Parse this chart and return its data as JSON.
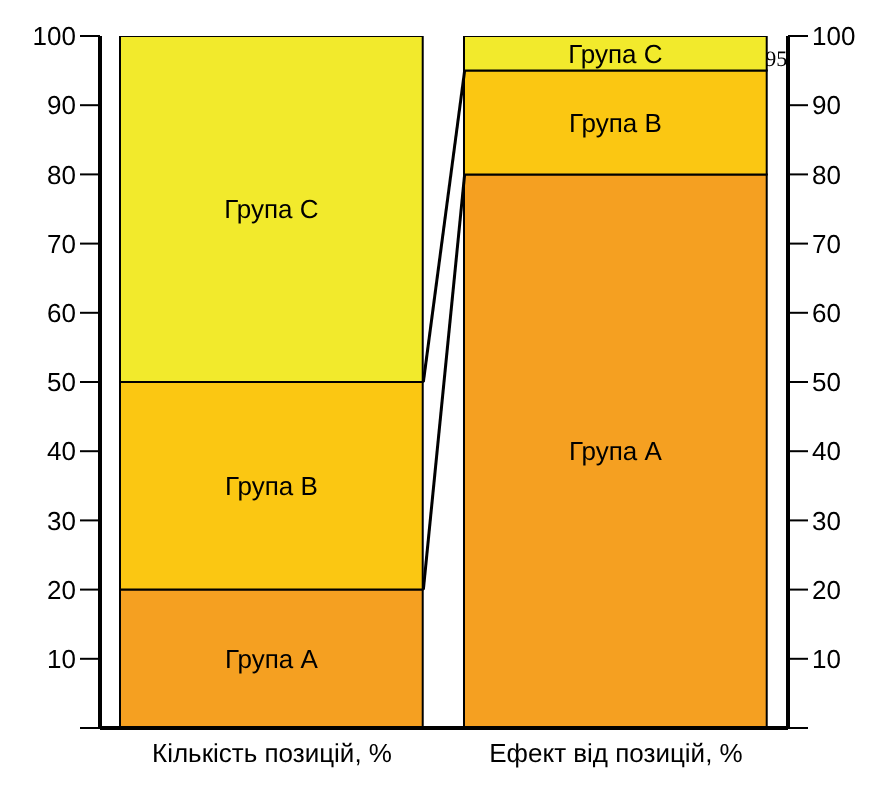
{
  "chart_data": {
    "type": "bar",
    "stacked": true,
    "categories": [
      "Кількість позицій, %",
      "Ефект від позицій, %"
    ],
    "series": [
      {
        "name": "Група А",
        "color": "#f5a021",
        "values": [
          20,
          80
        ]
      },
      {
        "name": "Група В",
        "color": "#fbc712",
        "values": [
          30,
          15
        ]
      },
      {
        "name": "Група С",
        "color": "#f2ea2c",
        "values": [
          50,
          5
        ]
      }
    ],
    "ylim": [
      0,
      100
    ],
    "yticks": [
      {
        "value": 0,
        "label": null
      },
      10,
      20,
      30,
      40,
      50,
      60,
      70,
      80,
      90,
      100
    ],
    "y2lim": [
      0,
      100
    ],
    "y2ticks": [
      {
        "value": 0,
        "label": null
      },
      10,
      20,
      30,
      40,
      50,
      60,
      70,
      80,
      90,
      100
    ],
    "annotations": [
      "95"
    ]
  }
}
